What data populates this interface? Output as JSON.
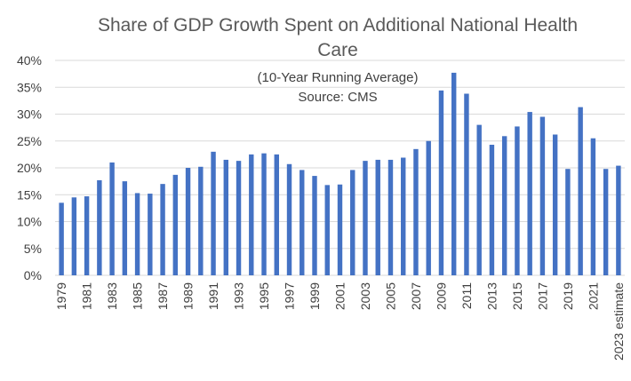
{
  "chart_data": {
    "type": "bar",
    "title_line1": "Share of GDP Growth Spent on Additional National Health",
    "title_line2": "Care",
    "subtitle_line1": "(10-Year Running Average)",
    "subtitle_line2": "Source: CMS",
    "xlabel": "",
    "ylabel": "",
    "ylim": [
      0,
      40
    ],
    "ytick_labels": [
      "0%",
      "5%",
      "10%",
      "15%",
      "20%",
      "25%",
      "30%",
      "35%",
      "40%"
    ],
    "grid": true,
    "legend": "none",
    "bar_color": "#4472C4",
    "grid_color": "#d9d9d9",
    "categories": [
      "1979",
      "1980",
      "1981",
      "1982",
      "1983",
      "1984",
      "1985",
      "1986",
      "1987",
      "1988",
      "1989",
      "1990",
      "1991",
      "1992",
      "1993",
      "1994",
      "1995",
      "1996",
      "1997",
      "1998",
      "1999",
      "2000",
      "2001",
      "2002",
      "2003",
      "2004",
      "2005",
      "2006",
      "2007",
      "2008",
      "2009",
      "2010",
      "2011",
      "2012",
      "2013",
      "2014",
      "2015",
      "2016",
      "2017",
      "2018",
      "2019",
      "2020",
      "2021",
      "2022",
      "2023 estimate"
    ],
    "visible_x_labels": [
      "1979",
      "1981",
      "1983",
      "1985",
      "1987",
      "1989",
      "1991",
      "1993",
      "1995",
      "1997",
      "1999",
      "2001",
      "2003",
      "2005",
      "2007",
      "2009",
      "2011",
      "2013",
      "2015",
      "2017",
      "2019",
      "2021",
      "2023 estimate"
    ],
    "values": [
      13.5,
      14.5,
      14.7,
      17.7,
      21.0,
      17.5,
      15.3,
      15.2,
      17.0,
      18.7,
      20.0,
      20.2,
      23.0,
      21.5,
      21.3,
      22.5,
      22.7,
      22.5,
      20.7,
      19.6,
      18.5,
      16.8,
      16.9,
      19.6,
      21.3,
      21.5,
      21.5,
      21.9,
      23.5,
      25.0,
      34.4,
      37.7,
      33.8,
      28.0,
      24.3,
      25.9,
      27.7,
      30.4,
      29.5,
      26.2,
      19.8,
      31.3,
      25.5,
      19.8,
      20.4
    ]
  }
}
